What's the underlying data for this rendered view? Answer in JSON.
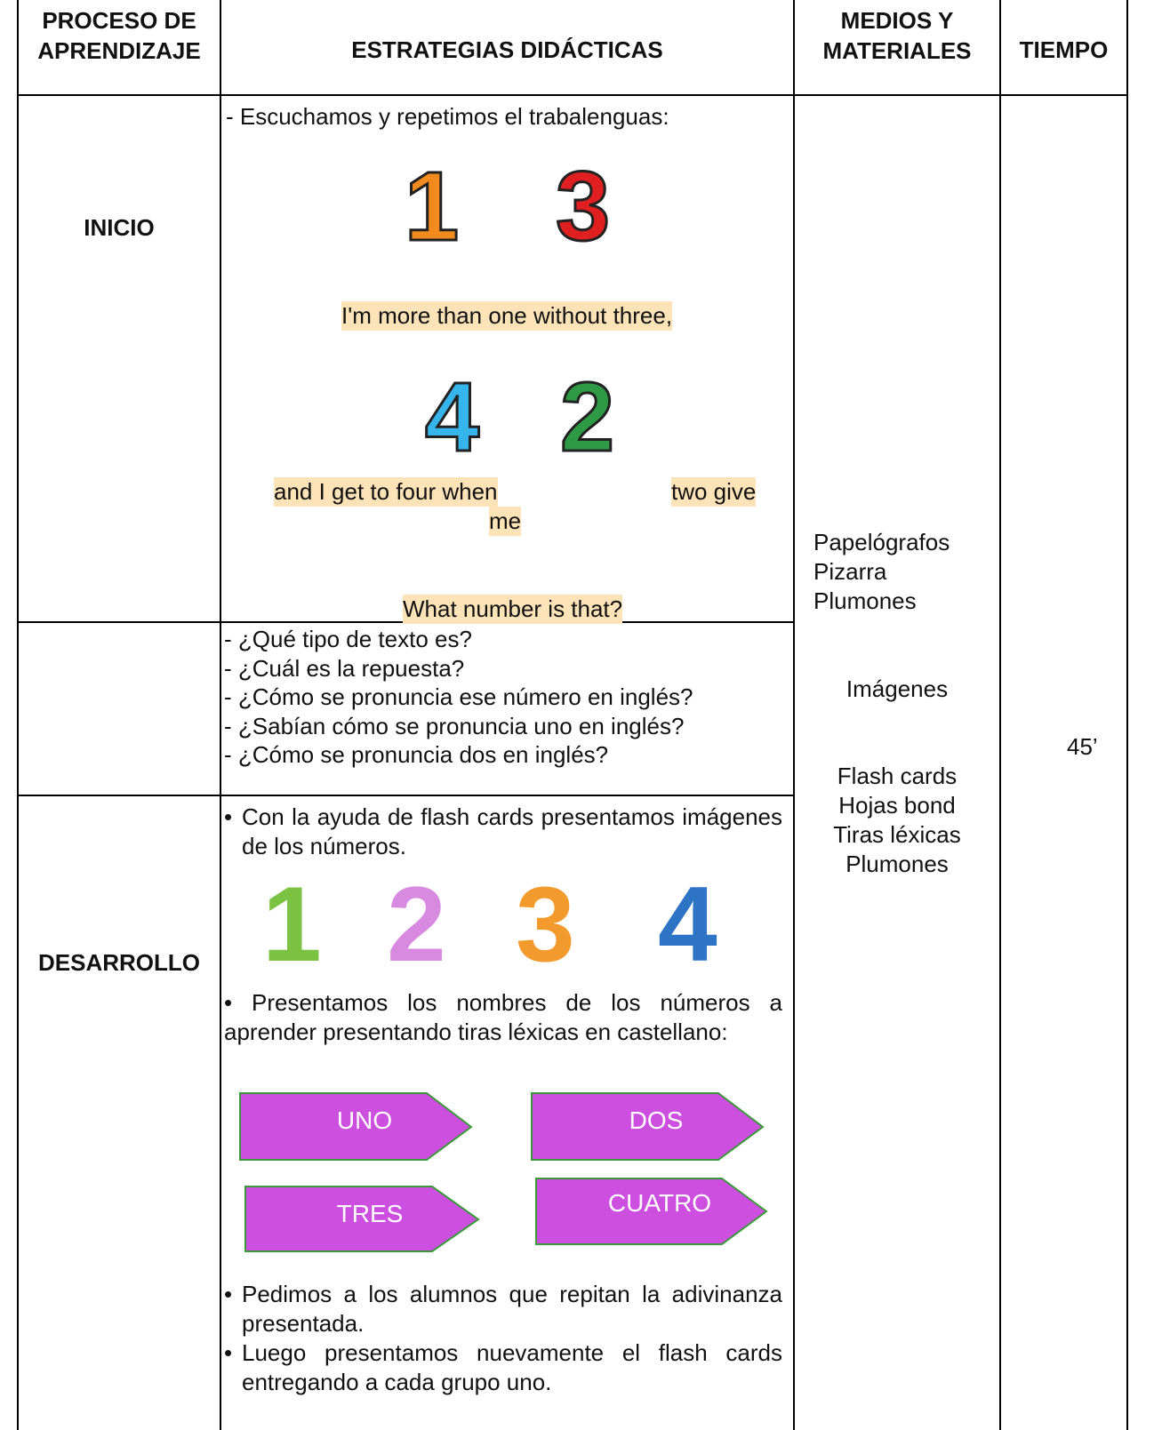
{
  "header": {
    "process": "PROCESO DE APRENDIZAJE",
    "strategies": "ESTRATEGIAS DIDÁCTICAS",
    "materials": "MEDIOS Y MATERIALES",
    "time": "TIEMPO"
  },
  "inicio": {
    "stage": "INICIO",
    "intro": "- Escuchamos y repetimos el trabalenguas:",
    "figures": [
      "1",
      "3",
      "4",
      "2"
    ],
    "line1": "I'm more than one without three,",
    "line2a": "and I get to four when",
    "line2b": "two give",
    "line2c": "me",
    "line3": "What number is that?"
  },
  "questions": [
    "- ¿Qué tipo de texto es?",
    "- ¿Cuál es la repuesta?",
    "- ¿Cómo se pronuncia ese número en inglés?",
    "- ¿Sabían cómo se pronuncia uno en inglés?",
    "- ¿Cómo se pronuncia dos en inglés?"
  ],
  "desarrollo": {
    "stage": "DESARROLLO",
    "bullet1": "Con la ayuda de flash cards presentamos imágenes de los números.",
    "figures": [
      "1",
      "2",
      "3",
      "4"
    ],
    "paragraph": "• Presentamos los nombres de los números a aprender presentando tiras léxicas en castellano:",
    "strips": [
      "UNO",
      "DOS",
      "TRES",
      "CUATRO"
    ],
    "bullets": [
      "Pedimos a los alumnos que repitan la adivinanza presentada.",
      "Luego presentamos nuevamente el flash cards entregando a cada grupo uno."
    ]
  },
  "materials": [
    "Papelógrafos",
    "Pizarra",
    "Plumones",
    "Imágenes",
    "Flash cards",
    "Hojas bond",
    "Tiras léxicas",
    "Plumones"
  ],
  "time": "45’"
}
